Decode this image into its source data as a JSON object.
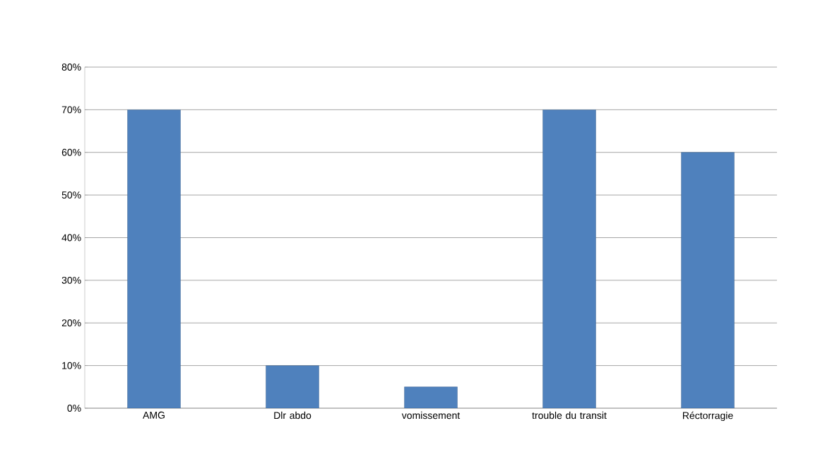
{
  "chart_data": {
    "type": "bar",
    "categories": [
      "AMG",
      "Dlr abdo",
      "vomissement",
      "trouble du transit",
      "Réctorragie"
    ],
    "values": [
      70,
      10,
      5,
      70,
      60
    ],
    "color": "#4f81bd",
    "ylim": [
      0,
      80
    ],
    "yticks": [
      {
        "value": 0,
        "label": "0%"
      },
      {
        "value": 10,
        "label": "10%"
      },
      {
        "value": 20,
        "label": "20%"
      },
      {
        "value": 30,
        "label": "30%"
      },
      {
        "value": 40,
        "label": "40%"
      },
      {
        "value": 50,
        "label": "50%"
      },
      {
        "value": 60,
        "label": "60%"
      },
      {
        "value": 70,
        "label": "70%"
      },
      {
        "value": 80,
        "label": "80%"
      }
    ],
    "grid": true
  }
}
